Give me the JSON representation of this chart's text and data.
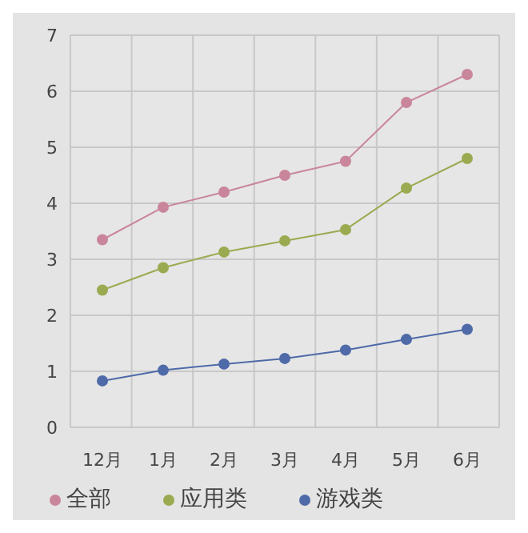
{
  "chart_data": {
    "type": "line",
    "categories": [
      "12月",
      "1月",
      "2月",
      "3月",
      "4月",
      "5月",
      "6月"
    ],
    "series": [
      {
        "name": "全部",
        "color": "#c9869b",
        "values": [
          3.35,
          3.93,
          4.2,
          4.5,
          4.75,
          5.8,
          6.3
        ]
      },
      {
        "name": "应用类",
        "color": "#9aaa50",
        "values": [
          2.45,
          2.85,
          3.13,
          3.33,
          3.53,
          4.27,
          4.8
        ]
      },
      {
        "name": "游戏类",
        "color": "#4e6aa8",
        "values": [
          0.83,
          1.02,
          1.13,
          1.23,
          1.38,
          1.57,
          1.75
        ]
      }
    ],
    "ylim": [
      0,
      7
    ],
    "yticks": [
      0,
      1,
      2,
      3,
      4,
      5,
      6,
      7
    ],
    "grid": true,
    "legend": "bottom",
    "marker": "circle",
    "line_style": "solid"
  }
}
